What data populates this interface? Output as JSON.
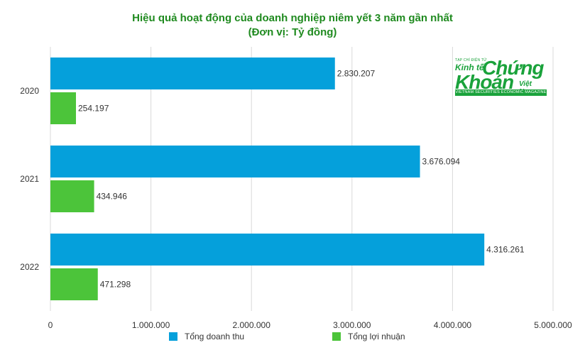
{
  "chart_data": {
    "type": "bar",
    "orientation": "horizontal",
    "title": "Hiệu quả hoạt động của doanh nghiệp niêm yết 3 năm gần nhất",
    "subtitle": "(Đơn vị: Tỷ đồng)",
    "categories": [
      "2020",
      "2021",
      "2022"
    ],
    "series": [
      {
        "name": "Tổng doanh thu",
        "color": "#05a0db",
        "values": [
          2830207,
          3676094,
          4316261
        ],
        "labels": [
          "2.830.207",
          "3.676.094",
          "4.316.261"
        ]
      },
      {
        "name": "Tổng lợi nhuận",
        "color": "#4cc43a",
        "values": [
          254197,
          434946,
          471298
        ],
        "labels": [
          "254.197",
          "434.946",
          "471.298"
        ]
      }
    ],
    "xlim": [
      0,
      5000000
    ],
    "xticks": [
      0,
      1000000,
      2000000,
      3000000,
      4000000,
      5000000
    ],
    "xtick_labels": [
      "0",
      "1.000.000",
      "2.000.000",
      "3.000.000",
      "4.000.000",
      "5.000.000"
    ],
    "grid": true,
    "legend_position": "bottom"
  },
  "logo": {
    "tagline": "TẠP CHÍ ĐIỆN TỬ",
    "line1": "Kinh tế",
    "line2": "Chứng",
    "line3": "Khoán",
    "line4": "Việt Nam",
    "band": "VIETNAM SECURITIES ECONOMIC MAGAZINE"
  }
}
